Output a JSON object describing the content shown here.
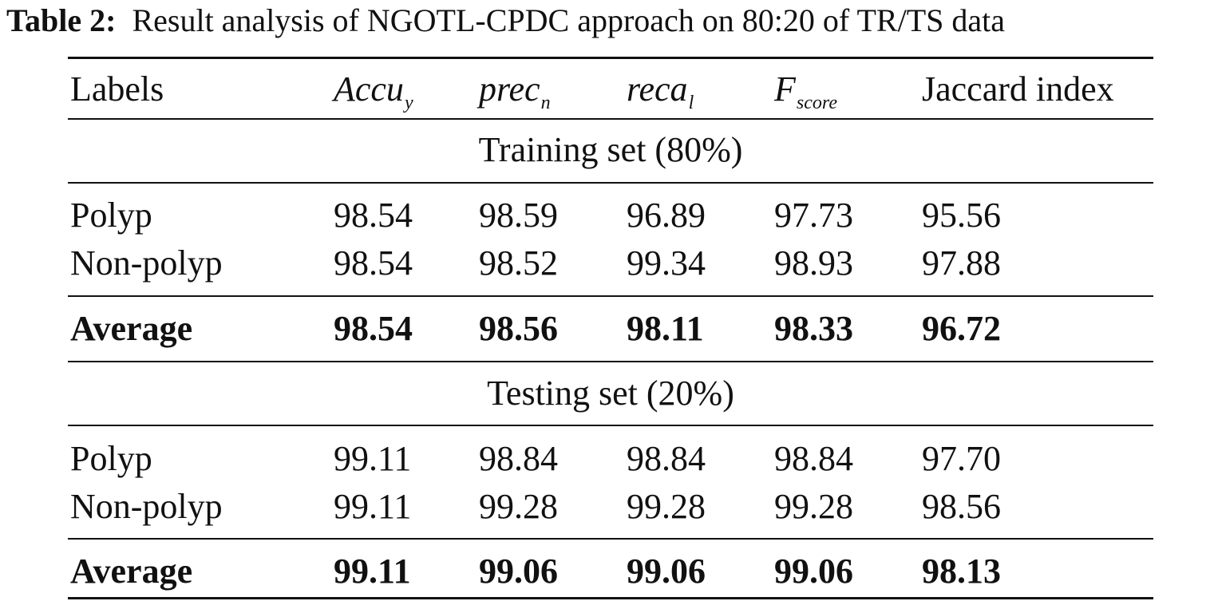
{
  "caption": {
    "label": "Table 2:",
    "text": "Result analysis of NGOTL-CPDC approach on 80:20 of TR/TS data"
  },
  "headers": [
    {
      "main": "Labels",
      "sub": ""
    },
    {
      "main": "Accu",
      "sub": "y"
    },
    {
      "main": "prec",
      "sub": "n"
    },
    {
      "main": "reca",
      "sub": "l"
    },
    {
      "main": "F",
      "sub": "score"
    },
    {
      "main": "Jaccard index",
      "sub": ""
    }
  ],
  "sections": [
    {
      "title": "Training set (80%)",
      "rows": [
        {
          "label": "Polyp",
          "values": [
            "98.54",
            "98.59",
            "96.89",
            "97.73",
            "95.56"
          ]
        },
        {
          "label": "Non-polyp",
          "values": [
            "98.54",
            "98.52",
            "99.34",
            "98.93",
            "97.88"
          ]
        }
      ],
      "average": {
        "label": "Average",
        "values": [
          "98.54",
          "98.56",
          "98.11",
          "98.33",
          "96.72"
        ]
      }
    },
    {
      "title": "Testing set (20%)",
      "rows": [
        {
          "label": "Polyp",
          "values": [
            "99.11",
            "98.84",
            "98.84",
            "98.84",
            "97.70"
          ]
        },
        {
          "label": "Non-polyp",
          "values": [
            "99.11",
            "99.28",
            "99.28",
            "99.28",
            "98.56"
          ]
        }
      ],
      "average": {
        "label": "Average",
        "values": [
          "99.11",
          "99.06",
          "99.06",
          "99.06",
          "98.13"
        ]
      }
    }
  ]
}
